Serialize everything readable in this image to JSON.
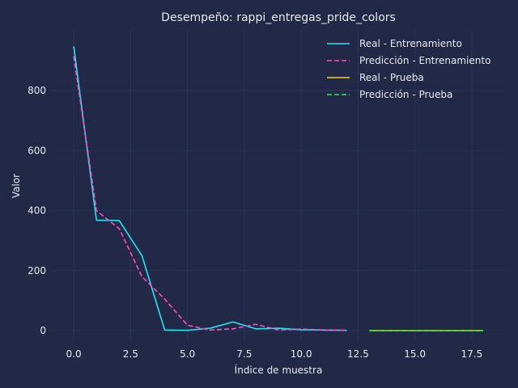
{
  "chart_data": {
    "type": "line",
    "title": "Desempeño: rappi_entregas_pride_colors",
    "xlabel": "Índice de muestra",
    "ylabel": "Valor",
    "xlim": [
      -1,
      19
    ],
    "ylim": [
      -35,
      1000
    ],
    "xticks": [
      0.0,
      2.5,
      5.0,
      7.5,
      10.0,
      12.5,
      15.0,
      17.5
    ],
    "xtick_labels": [
      "0.0",
      "2.5",
      "5.0",
      "7.5",
      "10.0",
      "12.5",
      "15.0",
      "17.5"
    ],
    "yticks": [
      0,
      200,
      400,
      600,
      800
    ],
    "ytick_labels": [
      "0",
      "200",
      "400",
      "600",
      "800"
    ],
    "grid": true,
    "legend_position": "top-right",
    "series": [
      {
        "name": "Real - Entrenamiento",
        "color": "#22e5f5",
        "dash": "solid",
        "x": [
          0,
          1,
          2,
          3,
          4,
          5,
          6,
          7,
          8,
          9,
          10,
          11,
          12
        ],
        "y": [
          948,
          368,
          367,
          250,
          2,
          1,
          8,
          29,
          6,
          8,
          3,
          2,
          1
        ]
      },
      {
        "name": "Predicción - Entrenamiento",
        "color": "#ff4fbb",
        "dash": "dashed",
        "x": [
          0,
          1,
          2,
          3,
          4,
          5,
          6,
          7,
          8,
          9,
          10,
          11,
          12
        ],
        "y": [
          915,
          400,
          340,
          180,
          105,
          18,
          2,
          6,
          21,
          2,
          5,
          2,
          1
        ]
      },
      {
        "name": "Real - Prueba",
        "color": "#f5d414",
        "dash": "solid",
        "x": [
          13,
          14,
          15,
          16,
          17,
          18
        ],
        "y": [
          0,
          0,
          0,
          0,
          0,
          0
        ]
      },
      {
        "name": "Predicción - Prueba",
        "color": "#21f24e",
        "dash": "dashed",
        "x": [
          13,
          14,
          15,
          16,
          17,
          18
        ],
        "y": [
          0,
          0,
          0,
          0,
          0,
          0
        ]
      }
    ]
  }
}
